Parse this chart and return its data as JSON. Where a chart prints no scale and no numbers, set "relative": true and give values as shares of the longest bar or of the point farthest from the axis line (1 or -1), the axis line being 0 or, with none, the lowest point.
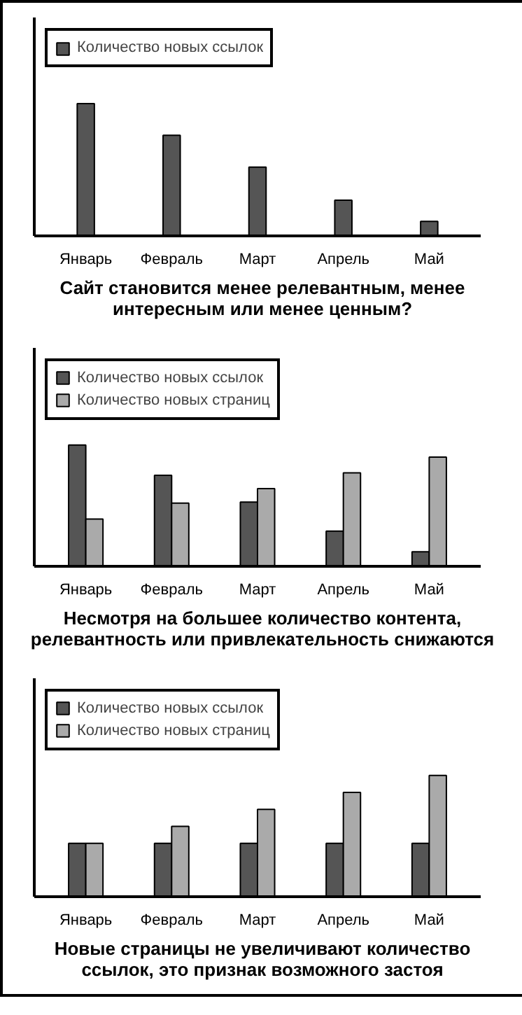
{
  "chart_data": [
    {
      "type": "bar",
      "title": "Сайт становится менее релевантным, менее интересным или менее ценным?",
      "categories": [
        "Январь",
        "Февраль",
        "Март",
        "Апрель",
        "Май"
      ],
      "relative": true,
      "legend": "top left",
      "tick_labels": "x",
      "series": [
        {
          "name": "Количество новых ссылок",
          "color": "#555555",
          "values": [
            1,
            0.76,
            0.52,
            0.27,
            0.11
          ]
        }
      ]
    },
    {
      "type": "bar",
      "title": "Несмотря на большее количество контента, релевантность или привлекательность снижаются",
      "categories": [
        "Январь",
        "Февраль",
        "Март",
        "Апрель",
        "Май"
      ],
      "relative": true,
      "legend": "top left",
      "tick_labels": "x",
      "series": [
        {
          "name": "Количество новых ссылок",
          "color": "#555555",
          "values": [
            1,
            0.75,
            0.53,
            0.29,
            0.12
          ]
        },
        {
          "name": "Количество новых страниц",
          "color": "#aaaaaa",
          "values": [
            0.39,
            0.52,
            0.64,
            0.77,
            0.9
          ]
        }
      ]
    },
    {
      "type": "bar",
      "title": "Новые страницы не увеличивают количество ссылок, это признак возможного застоя",
      "categories": [
        "Январь",
        "Февраль",
        "Март",
        "Апрель",
        "Май"
      ],
      "relative": true,
      "legend": "top left",
      "tick_labels": "x",
      "series": [
        {
          "name": "Количество новых ссылок",
          "color": "#555555",
          "values": [
            0.44,
            0.44,
            0.44,
            0.44,
            0.44
          ]
        },
        {
          "name": "Количество новых страниц",
          "color": "#aaaaaa",
          "values": [
            0.44,
            0.58,
            0.72,
            0.86,
            1
          ]
        }
      ]
    }
  ]
}
